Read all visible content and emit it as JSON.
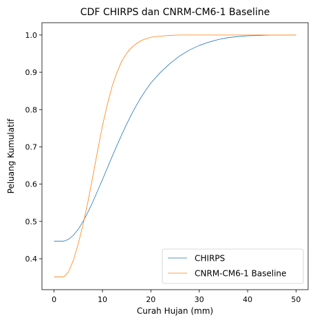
{
  "chart_data": {
    "type": "line",
    "title": "CDF CHIRPS dan CNRM-CM6-1 Baseline",
    "xlabel": "Curah Hujan (mm)",
    "ylabel": "Peluang Kumulatif",
    "xlim": [
      -2.5,
      52.5
    ],
    "ylim": [
      0.317,
      1.033
    ],
    "x_ticks": [
      0,
      10,
      20,
      30,
      40,
      50
    ],
    "y_ticks": [
      0.4,
      0.5,
      0.6,
      0.7,
      0.8,
      0.9,
      1.0
    ],
    "x_tick_labels": [
      "0",
      "10",
      "20",
      "30",
      "40",
      "50"
    ],
    "y_tick_labels": [
      "0.4",
      "0.5",
      "0.6",
      "0.7",
      "0.8",
      "0.9",
      "1.0"
    ],
    "grid": false,
    "legend_position": "lower-right",
    "series": [
      {
        "name": "CHIRPS",
        "color": "#1f77b4",
        "x": [
          0,
          2,
          3,
          4,
          5,
          6,
          7,
          8,
          9,
          10,
          11,
          12,
          13,
          14,
          15,
          16,
          17,
          18,
          19,
          20,
          22,
          24,
          26,
          28,
          30,
          32,
          34,
          36,
          38,
          40,
          45,
          50
        ],
        "y": [
          0.447,
          0.447,
          0.452,
          0.463,
          0.479,
          0.5,
          0.525,
          0.552,
          0.582,
          0.612,
          0.643,
          0.674,
          0.704,
          0.733,
          0.761,
          0.787,
          0.811,
          0.833,
          0.853,
          0.871,
          0.9,
          0.924,
          0.944,
          0.96,
          0.972,
          0.981,
          0.988,
          0.993,
          0.996,
          0.998,
          1.0,
          1.0
        ]
      },
      {
        "name": "CNRM-CM6-1 Baseline",
        "color": "#ff7f0e",
        "x": [
          0,
          2,
          3,
          4,
          5,
          6,
          7,
          8,
          9,
          10,
          11,
          12,
          13,
          14,
          15,
          16,
          17,
          18,
          19,
          20,
          22,
          24,
          26,
          28,
          30,
          32,
          35,
          40,
          45,
          50
        ],
        "y": [
          0.351,
          0.351,
          0.365,
          0.396,
          0.44,
          0.492,
          0.553,
          0.62,
          0.69,
          0.756,
          0.813,
          0.862,
          0.9,
          0.93,
          0.951,
          0.966,
          0.977,
          0.985,
          0.99,
          0.994,
          0.997,
          0.999,
          1.0,
          1.0,
          1.0,
          1.0,
          1.0,
          1.0,
          1.0,
          1.0
        ]
      }
    ]
  }
}
